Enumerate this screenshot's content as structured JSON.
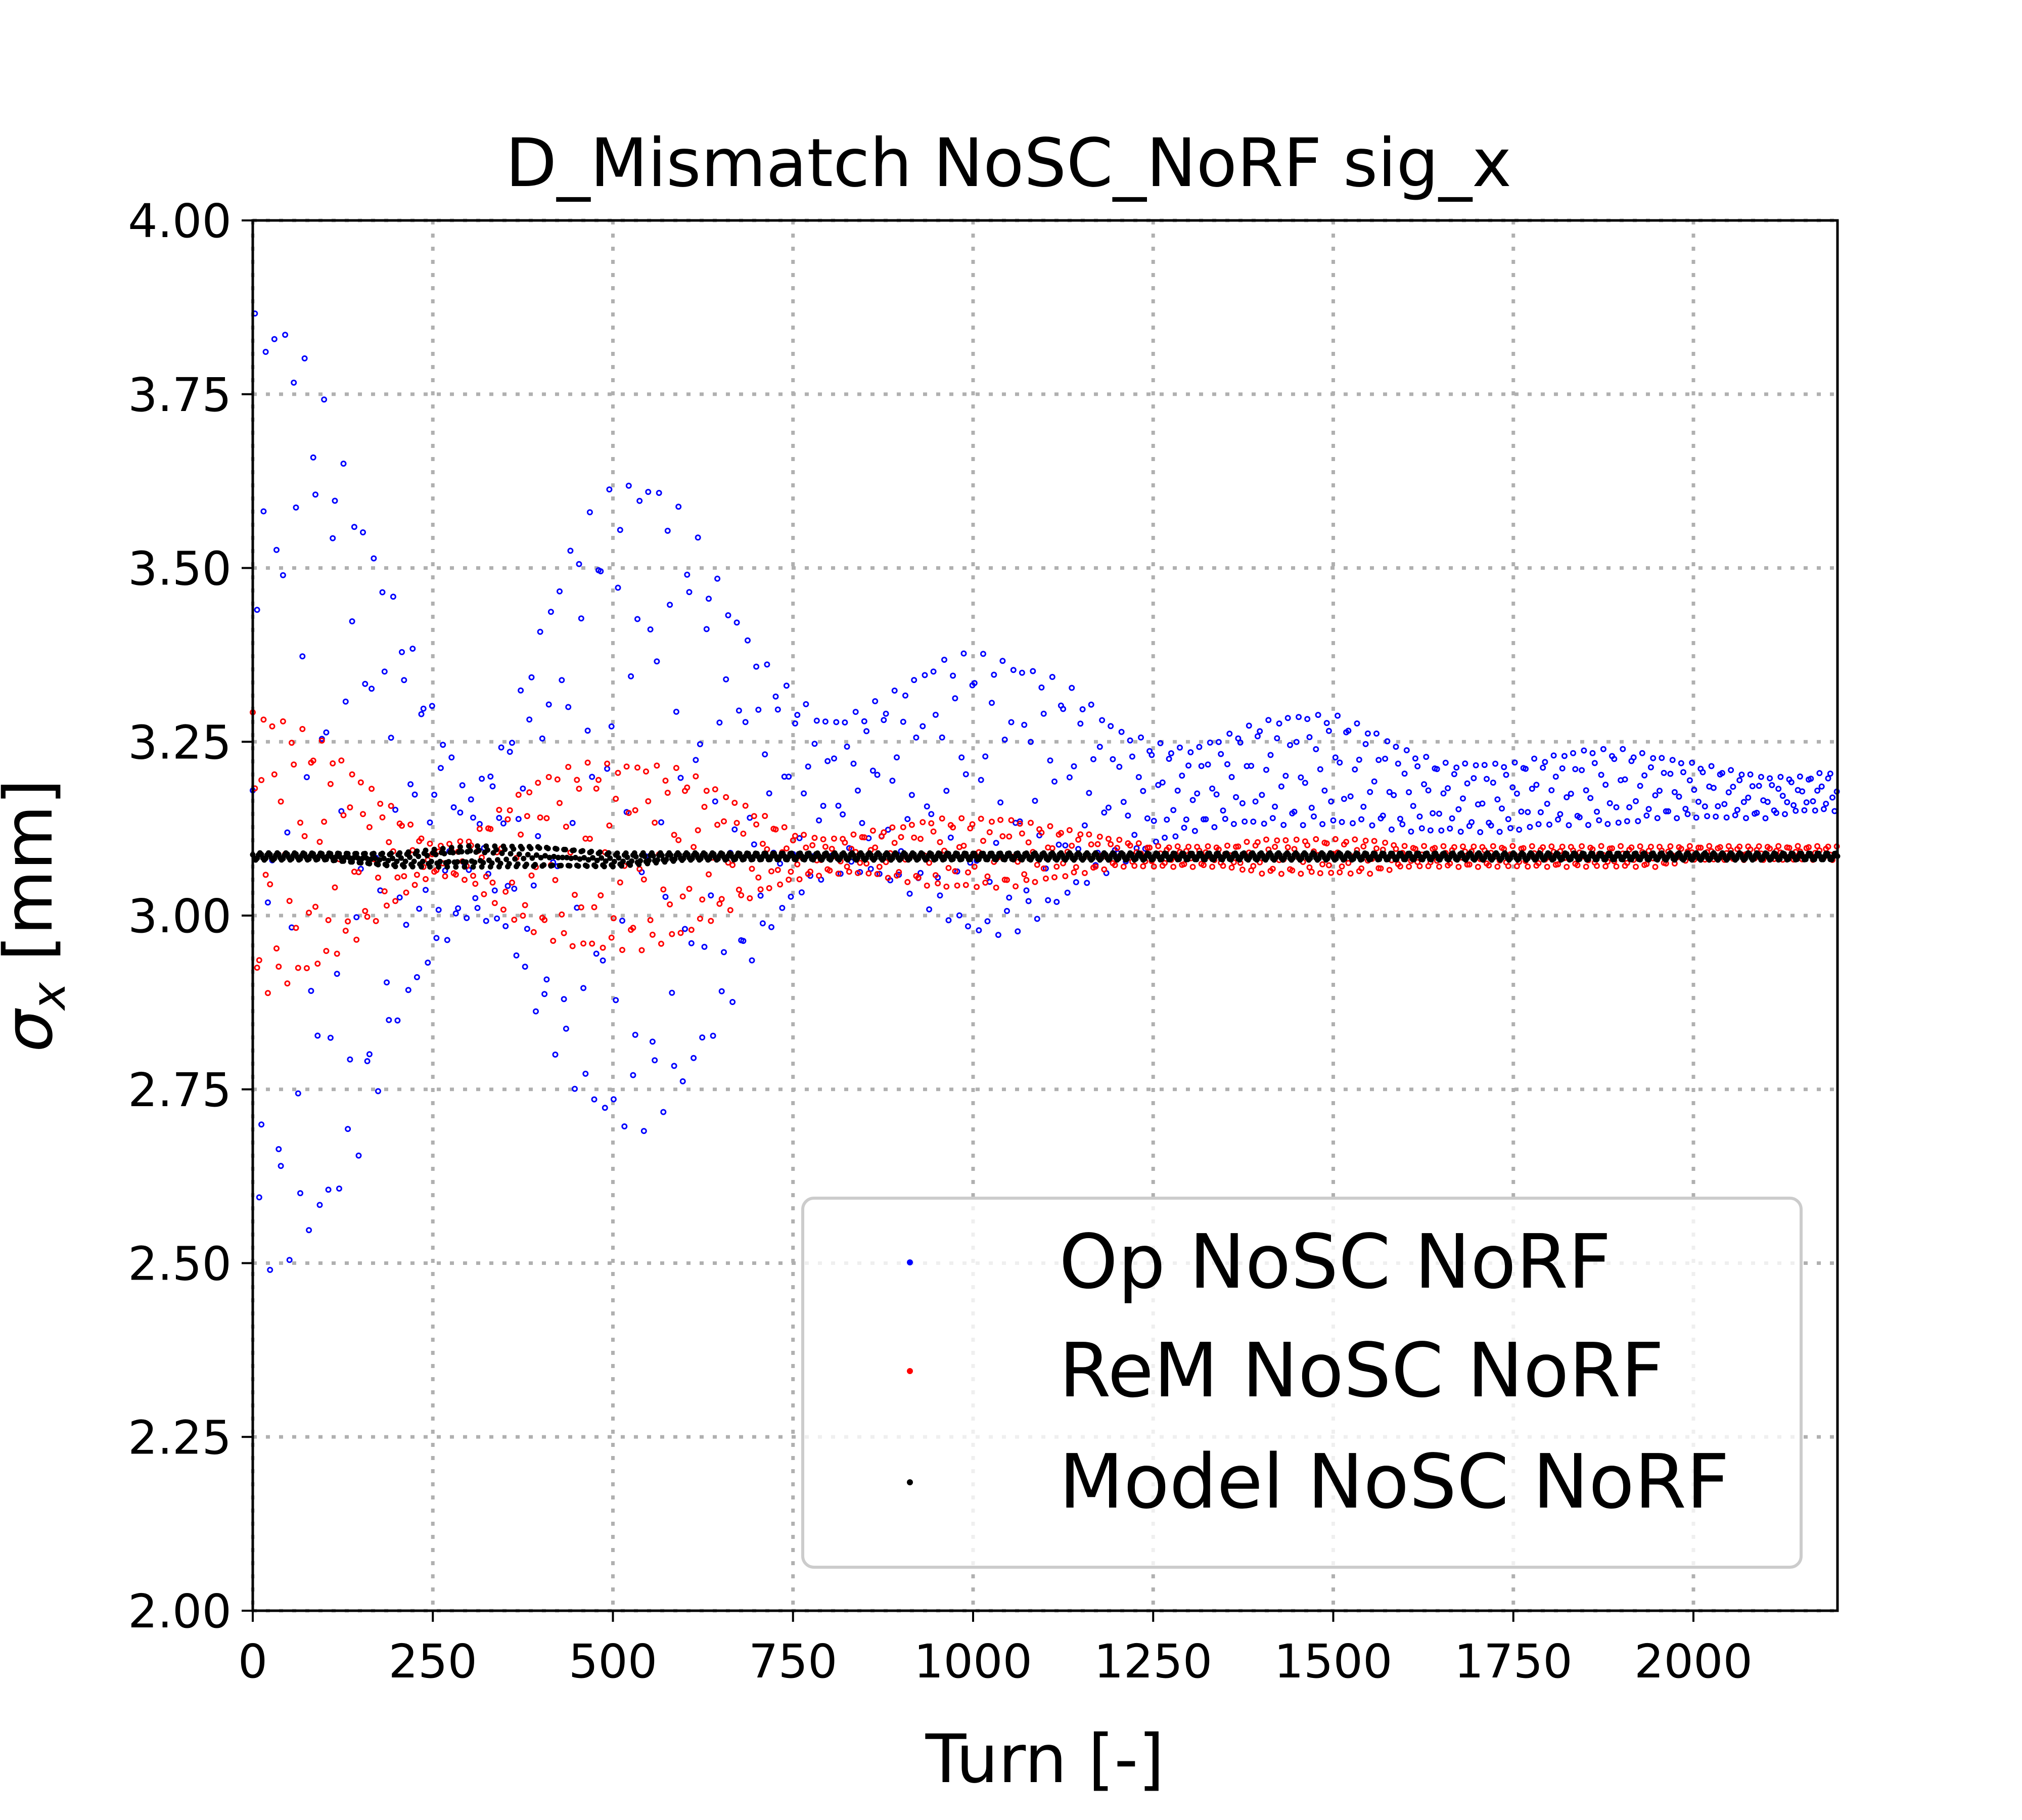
{
  "chart_data": {
    "type": "scatter",
    "title": "D_Mismatch NoSC_NoRF sig_x",
    "xlabel": "Turn [-]",
    "ylabel": "σx [mm]",
    "ylabel_main": "σ",
    "ylabel_sub": "x",
    "ylabel_unit": " [mm]",
    "xlim": [
      0,
      2200
    ],
    "ylim": [
      2.0,
      4.0
    ],
    "xticks": [
      "0",
      "250",
      "500",
      "750",
      "1000",
      "1250",
      "1500",
      "1750",
      "2000"
    ],
    "yticks": [
      "2.00",
      "2.25",
      "2.50",
      "2.75",
      "3.00",
      "3.25",
      "3.50",
      "3.75",
      "4.00"
    ],
    "grid": true,
    "legend_position": "lower-right",
    "series": [
      {
        "name": "Op NoSC NoRF",
        "color": "#0000ff",
        "envelope_turns": [
          0,
          50,
          100,
          150,
          200,
          250,
          300,
          350,
          400,
          450,
          500,
          550,
          600,
          650,
          700,
          750,
          800,
          850,
          900,
          950,
          1000,
          1050,
          1100,
          1150,
          1200,
          1250,
          1300,
          1350,
          1400,
          1450,
          1500,
          1550,
          1600,
          1650,
          1700,
          1750,
          1800,
          1850,
          1900,
          1950,
          2000,
          2050,
          2100,
          2150,
          2200
        ],
        "upper": [
          3.88,
          3.86,
          3.74,
          3.58,
          3.45,
          3.3,
          3.17,
          3.25,
          3.42,
          3.56,
          3.62,
          3.64,
          3.58,
          3.48,
          3.38,
          3.32,
          3.28,
          3.3,
          3.33,
          3.37,
          3.38,
          3.37,
          3.35,
          3.32,
          3.27,
          3.25,
          3.24,
          3.26,
          3.28,
          3.29,
          3.29,
          3.27,
          3.24,
          3.22,
          3.22,
          3.22,
          3.23,
          3.24,
          3.24,
          3.23,
          3.22,
          3.21,
          3.2,
          3.2,
          3.21
        ],
        "lower": [
          2.48,
          2.5,
          2.55,
          2.66,
          2.84,
          2.94,
          3.0,
          2.98,
          2.84,
          2.74,
          2.69,
          2.69,
          2.75,
          2.84,
          2.95,
          3.02,
          3.06,
          3.06,
          3.04,
          3.0,
          2.97,
          2.97,
          3.0,
          3.04,
          3.07,
          3.1,
          3.12,
          3.13,
          3.13,
          3.13,
          3.13,
          3.13,
          3.12,
          3.12,
          3.12,
          3.12,
          3.13,
          3.13,
          3.13,
          3.14,
          3.14,
          3.14,
          3.14,
          3.15,
          3.15
        ]
      },
      {
        "name": "ReM NoSC NoRF",
        "color": "#ff0000",
        "envelope_turns": [
          0,
          50,
          100,
          150,
          200,
          250,
          300,
          350,
          400,
          450,
          500,
          550,
          600,
          650,
          700,
          750,
          800,
          850,
          900,
          950,
          1000,
          1050,
          1100,
          1150,
          1200,
          1250,
          1300,
          1350,
          1400,
          1450,
          1500,
          1550,
          1600,
          1650,
          1700,
          1750,
          1800,
          1850,
          1900,
          1950,
          2000,
          2050,
          2100,
          2150,
          2200
        ],
        "upper": [
          3.3,
          3.28,
          3.25,
          3.2,
          3.15,
          3.1,
          3.11,
          3.16,
          3.2,
          3.22,
          3.22,
          3.22,
          3.21,
          3.18,
          3.15,
          3.12,
          3.11,
          3.12,
          3.13,
          3.14,
          3.14,
          3.14,
          3.13,
          3.12,
          3.11,
          3.1,
          3.1,
          3.1,
          3.11,
          3.11,
          3.11,
          3.11,
          3.1,
          3.1,
          3.1,
          3.1,
          3.1,
          3.1,
          3.1,
          3.1,
          3.1,
          3.1,
          3.1,
          3.1,
          3.1
        ],
        "lower": [
          2.88,
          2.9,
          2.93,
          2.97,
          3.02,
          3.06,
          3.05,
          3.0,
          2.97,
          2.95,
          2.95,
          2.95,
          2.97,
          3.0,
          3.03,
          3.05,
          3.06,
          3.06,
          3.05,
          3.04,
          3.04,
          3.04,
          3.05,
          3.06,
          3.07,
          3.07,
          3.07,
          3.07,
          3.06,
          3.06,
          3.06,
          3.06,
          3.07,
          3.07,
          3.07,
          3.07,
          3.07,
          3.07,
          3.07,
          3.07,
          3.08,
          3.08,
          3.08,
          3.08,
          3.08
        ]
      },
      {
        "name": "Model NoSC NoRF",
        "color": "#000000",
        "envelope_turns": [
          0,
          100,
          200,
          300,
          400,
          500,
          600,
          700,
          800,
          900,
          1000,
          1100,
          1200,
          1300,
          1400,
          1500,
          1600,
          1700,
          1800,
          1900,
          2000,
          2100,
          2200
        ],
        "upper": [
          3.09,
          3.09,
          3.09,
          3.1,
          3.1,
          3.09,
          3.09,
          3.09,
          3.09,
          3.09,
          3.09,
          3.09,
          3.09,
          3.09,
          3.09,
          3.09,
          3.09,
          3.09,
          3.09,
          3.09,
          3.09,
          3.09,
          3.09
        ],
        "lower": [
          3.08,
          3.08,
          3.07,
          3.07,
          3.07,
          3.07,
          3.08,
          3.08,
          3.08,
          3.08,
          3.08,
          3.08,
          3.08,
          3.08,
          3.08,
          3.08,
          3.08,
          3.08,
          3.08,
          3.08,
          3.08,
          3.08,
          3.08
        ]
      }
    ]
  }
}
